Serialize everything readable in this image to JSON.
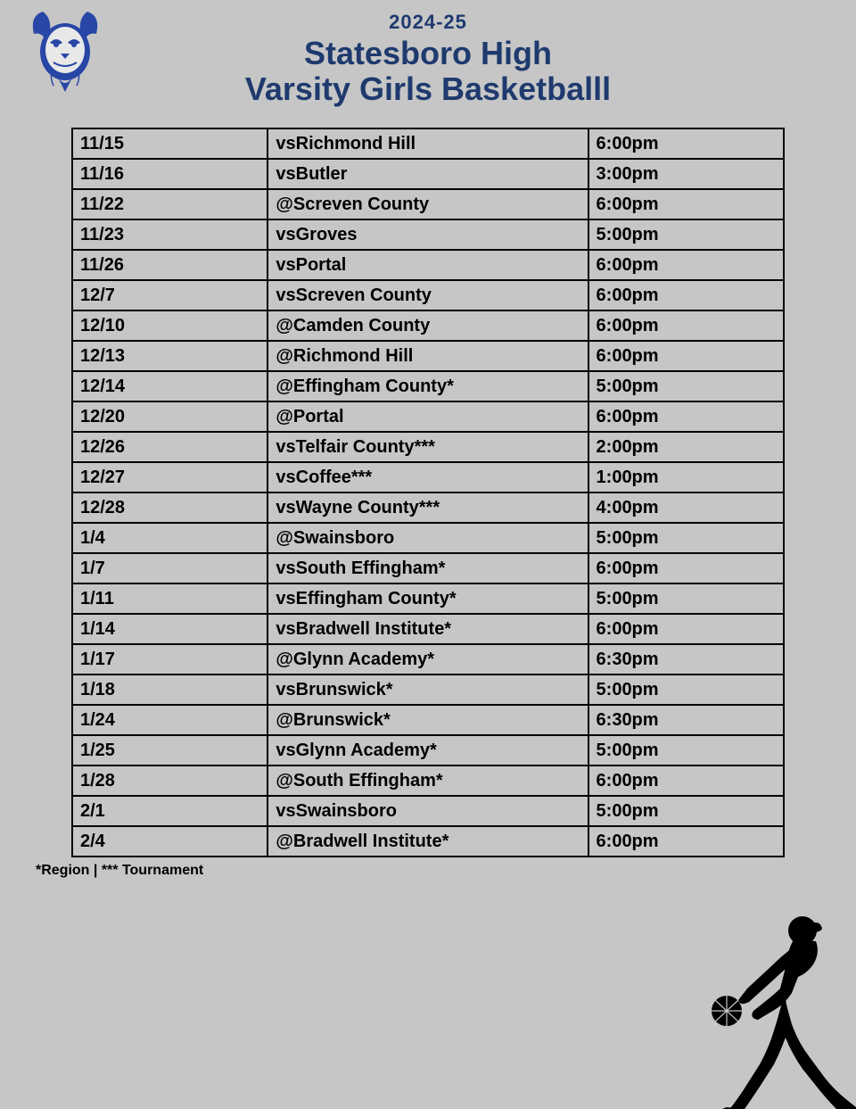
{
  "header": {
    "season": "2024-25",
    "title_line1": "Statesboro High",
    "title_line2": "Varsity Girls Basketballl"
  },
  "colors": {
    "background": "#c6c6c6",
    "title_color": "#1e3a6e",
    "border_color": "#000000",
    "text_color": "#000000",
    "logo_primary": "#2746a6",
    "silhouette": "#000000"
  },
  "schedule": [
    {
      "date": "11/15",
      "opponent": "vsRichmond Hill",
      "time": "6:00pm"
    },
    {
      "date": "11/16",
      "opponent": "vsButler",
      "time": "3:00pm"
    },
    {
      "date": "11/22",
      "opponent": "@Screven County",
      "time": "6:00pm"
    },
    {
      "date": "11/23",
      "opponent": "vsGroves",
      "time": "5:00pm"
    },
    {
      "date": "11/26",
      "opponent": "vsPortal",
      "time": "6:00pm"
    },
    {
      "date": "12/7",
      "opponent": "vsScreven County",
      "time": "6:00pm"
    },
    {
      "date": "12/10",
      "opponent": "@Camden County",
      "time": "6:00pm"
    },
    {
      "date": "12/13",
      "opponent": "@Richmond Hill",
      "time": "6:00pm"
    },
    {
      "date": "12/14",
      "opponent": "@Effingham County*",
      "time": "5:00pm"
    },
    {
      "date": "12/20",
      "opponent": "@Portal",
      "time": "6:00pm"
    },
    {
      "date": "12/26",
      "opponent": "vsTelfair County***",
      "time": "2:00pm"
    },
    {
      "date": "12/27",
      "opponent": "vsCoffee***",
      "time": "1:00pm"
    },
    {
      "date": "12/28",
      "opponent": "vsWayne County***",
      "time": "4:00pm"
    },
    {
      "date": "1/4",
      "opponent": "@Swainsboro",
      "time": "5:00pm"
    },
    {
      "date": "1/7",
      "opponent": "vsSouth Effingham*",
      "time": "6:00pm"
    },
    {
      "date": "1/11",
      "opponent": "vsEffingham County*",
      "time": "5:00pm"
    },
    {
      "date": "1/14",
      "opponent": "vsBradwell Institute*",
      "time": "6:00pm"
    },
    {
      "date": "1/17",
      "opponent": "@Glynn Academy*",
      "time": "6:30pm"
    },
    {
      "date": "1/18",
      "opponent": "vsBrunswick*",
      "time": "5:00pm"
    },
    {
      "date": "1/24",
      "opponent": "@Brunswick*",
      "time": "6:30pm"
    },
    {
      "date": "1/25",
      "opponent": "vsGlynn Academy*",
      "time": "5:00pm"
    },
    {
      "date": "1/28",
      "opponent": "@South Effingham*",
      "time": "6:00pm"
    },
    {
      "date": "2/1",
      "opponent": "vsSwainsboro",
      "time": "5:00pm"
    },
    {
      "date": "2/4",
      "opponent": "@Bradwell Institute*",
      "time": "6:00pm"
    }
  ],
  "footnote": "*Region | *** Tournament"
}
